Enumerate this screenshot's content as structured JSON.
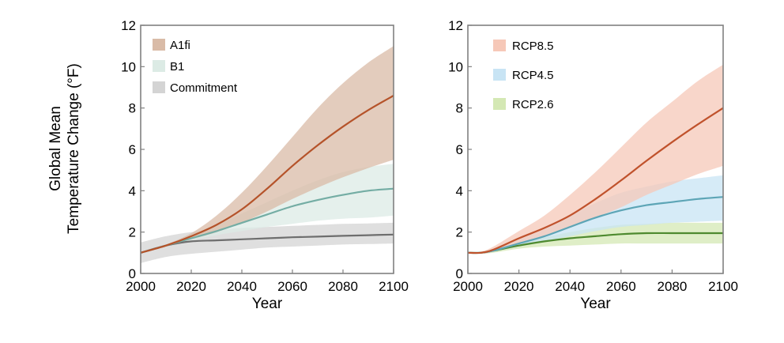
{
  "shared_ylabel": [
    "Global Mean",
    "Temperature Change (°F)"
  ],
  "chart_data": [
    {
      "type": "line",
      "xlabel": "Year",
      "xlim": [
        2000,
        2100
      ],
      "ylim": [
        0,
        12
      ],
      "xticks": [
        2000,
        2020,
        2040,
        2060,
        2080,
        2100
      ],
      "yticks": [
        0,
        2,
        4,
        6,
        8,
        10,
        12
      ],
      "grid": false,
      "legend_position": "top-left",
      "series": [
        {
          "name": "A1fi",
          "color": "#b5532a",
          "band_color": "#d9bba7",
          "x": [
            2000,
            2010,
            2020,
            2030,
            2040,
            2050,
            2060,
            2070,
            2080,
            2090,
            2100
          ],
          "values": [
            1.0,
            1.35,
            1.8,
            2.35,
            3.1,
            4.1,
            5.2,
            6.2,
            7.1,
            7.9,
            8.6
          ],
          "lower": [
            1.0,
            1.3,
            1.65,
            2.0,
            2.45,
            3.0,
            3.6,
            4.15,
            4.65,
            5.1,
            5.5
          ],
          "upper": [
            1.0,
            1.4,
            1.95,
            2.8,
            3.9,
            5.2,
            6.6,
            8.0,
            9.2,
            10.2,
            11.0
          ]
        },
        {
          "name": "B1",
          "color": "#74ada4",
          "band_color": "#dcebe5",
          "x": [
            2000,
            2010,
            2020,
            2030,
            2040,
            2050,
            2060,
            2070,
            2080,
            2090,
            2100
          ],
          "values": [
            1.0,
            1.35,
            1.7,
            2.05,
            2.45,
            2.85,
            3.25,
            3.55,
            3.8,
            4.0,
            4.1
          ],
          "lower": [
            1.0,
            1.3,
            1.6,
            1.85,
            2.05,
            2.25,
            2.4,
            2.55,
            2.65,
            2.7,
            2.8
          ],
          "upper": [
            1.0,
            1.4,
            1.85,
            2.35,
            2.9,
            3.45,
            4.0,
            4.5,
            4.9,
            5.15,
            5.3
          ]
        },
        {
          "name": "Commitment",
          "color": "#6e6e6e",
          "band_color": "#d4d4d4",
          "x": [
            2000,
            2010,
            2020,
            2030,
            2040,
            2050,
            2060,
            2070,
            2080,
            2090,
            2100
          ],
          "values": [
            1.0,
            1.35,
            1.55,
            1.6,
            1.65,
            1.7,
            1.75,
            1.78,
            1.82,
            1.85,
            1.88
          ],
          "lower": [
            0.5,
            0.8,
            0.95,
            1.05,
            1.15,
            1.25,
            1.3,
            1.35,
            1.4,
            1.42,
            1.45
          ],
          "upper": [
            1.5,
            1.8,
            2.0,
            2.1,
            2.2,
            2.25,
            2.3,
            2.35,
            2.4,
            2.42,
            2.45
          ]
        }
      ]
    },
    {
      "type": "line",
      "xlabel": "Year",
      "xlim": [
        2000,
        2100
      ],
      "ylim": [
        0,
        12
      ],
      "xticks": [
        2000,
        2020,
        2040,
        2060,
        2080,
        2100
      ],
      "yticks": [
        0,
        2,
        4,
        6,
        8,
        10,
        12
      ],
      "grid": false,
      "legend_position": "top-left",
      "series": [
        {
          "name": "RCP8.5",
          "color": "#c0522c",
          "band_color": "#f6c8b8",
          "x": [
            2000,
            2005,
            2010,
            2020,
            2030,
            2040,
            2050,
            2060,
            2070,
            2080,
            2090,
            2100
          ],
          "values": [
            1.0,
            1.0,
            1.15,
            1.7,
            2.2,
            2.8,
            3.6,
            4.5,
            5.45,
            6.35,
            7.2,
            8.0
          ],
          "lower": [
            1.0,
            0.95,
            1.05,
            1.45,
            1.8,
            2.2,
            2.7,
            3.2,
            3.8,
            4.3,
            4.8,
            5.2
          ],
          "upper": [
            1.0,
            1.05,
            1.3,
            2.05,
            2.8,
            3.8,
            4.9,
            6.1,
            7.3,
            8.3,
            9.3,
            10.1
          ]
        },
        {
          "name": "RCP4.5",
          "color": "#5da5b6",
          "band_color": "#c8e4f4",
          "x": [
            2000,
            2005,
            2010,
            2020,
            2030,
            2040,
            2050,
            2060,
            2070,
            2080,
            2090,
            2100
          ],
          "values": [
            1.0,
            1.0,
            1.1,
            1.45,
            1.8,
            2.25,
            2.7,
            3.05,
            3.3,
            3.45,
            3.6,
            3.7
          ],
          "lower": [
            1.0,
            0.95,
            1.05,
            1.3,
            1.55,
            1.8,
            2.05,
            2.25,
            2.35,
            2.45,
            2.5,
            2.55
          ],
          "upper": [
            1.0,
            1.05,
            1.2,
            1.65,
            2.15,
            2.8,
            3.4,
            3.9,
            4.2,
            4.45,
            4.6,
            4.75
          ]
        },
        {
          "name": "RCP2.6",
          "color": "#4e8a2f",
          "band_color": "#d4e8b4",
          "x": [
            2000,
            2005,
            2010,
            2020,
            2030,
            2040,
            2050,
            2060,
            2070,
            2080,
            2090,
            2100
          ],
          "values": [
            1.0,
            1.0,
            1.1,
            1.35,
            1.55,
            1.7,
            1.8,
            1.9,
            1.95,
            1.95,
            1.95,
            1.95
          ],
          "lower": [
            1.0,
            0.95,
            1.0,
            1.2,
            1.3,
            1.35,
            1.4,
            1.45,
            1.45,
            1.45,
            1.45,
            1.45
          ],
          "upper": [
            1.0,
            1.05,
            1.2,
            1.5,
            1.75,
            2.0,
            2.2,
            2.35,
            2.4,
            2.45,
            2.45,
            2.45
          ]
        }
      ]
    }
  ]
}
